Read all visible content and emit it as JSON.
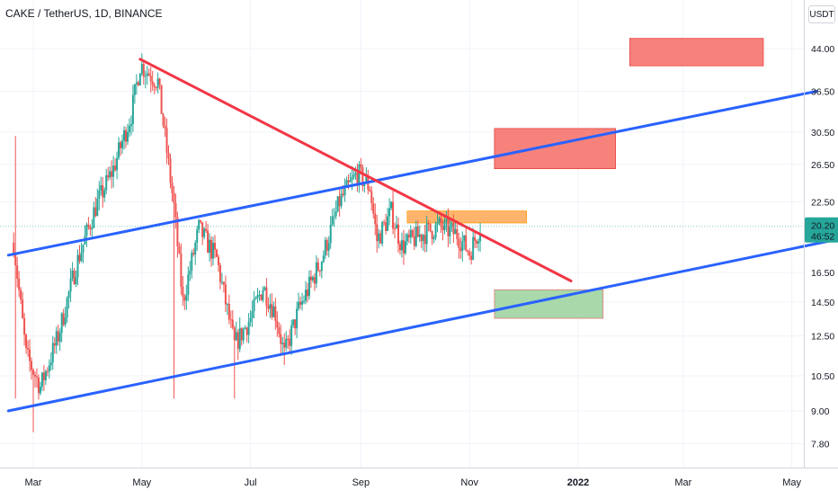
{
  "header": {
    "symbol": "CAKE / TetherUS, 1D, BINANCE",
    "currency_button": "USDT"
  },
  "colors": {
    "up": "#26a69a",
    "down": "#ef5350",
    "channel_line": "#2962ff",
    "trend_line": "#f23645",
    "last_price_tag": "#26a69a",
    "zone_red": "#f77c75",
    "zone_orange": "#ffb066",
    "zone_green": "#a5d6a7"
  },
  "chart_data": {
    "type": "candlestick",
    "scale": "log",
    "y_ticks": [
      "44.00",
      "36.50",
      "30.50",
      "26.50",
      "22.50",
      "16.50",
      "14.50",
      "12.50",
      "10.50",
      "9.00",
      "7.80"
    ],
    "x_ticks": [
      "Mar",
      "May",
      "Jul",
      "Sep",
      "Nov",
      "2022",
      "Mar",
      "May"
    ],
    "last_price": "20.20",
    "countdown": "46:52",
    "waypoints": [
      {
        "date": "2021-02-18",
        "price": 18.8
      },
      {
        "date": "2021-02-25",
        "price": 11.5
      },
      {
        "date": "2021-03-05",
        "price": 10.0
      },
      {
        "date": "2021-03-15",
        "price": 12.5
      },
      {
        "date": "2021-03-25",
        "price": 17.0
      },
      {
        "date": "2021-04-05",
        "price": 22.0
      },
      {
        "date": "2021-04-15",
        "price": 26.0
      },
      {
        "date": "2021-04-25",
        "price": 33.0
      },
      {
        "date": "2021-04-30",
        "price": 41.0
      },
      {
        "date": "2021-05-10",
        "price": 38.0
      },
      {
        "date": "2021-05-19",
        "price": 22.0
      },
      {
        "date": "2021-05-24",
        "price": 14.5
      },
      {
        "date": "2021-06-02",
        "price": 20.0
      },
      {
        "date": "2021-06-12",
        "price": 17.5
      },
      {
        "date": "2021-06-22",
        "price": 12.0
      },
      {
        "date": "2021-07-01",
        "price": 13.5
      },
      {
        "date": "2021-07-08",
        "price": 15.5
      },
      {
        "date": "2021-07-15",
        "price": 13.8
      },
      {
        "date": "2021-07-20",
        "price": 11.5
      },
      {
        "date": "2021-07-28",
        "price": 14.0
      },
      {
        "date": "2021-08-10",
        "price": 17.5
      },
      {
        "date": "2021-08-20",
        "price": 22.5
      },
      {
        "date": "2021-08-30",
        "price": 25.5
      },
      {
        "date": "2021-09-06",
        "price": 24.0
      },
      {
        "date": "2021-09-10",
        "price": 19.0
      },
      {
        "date": "2021-09-18",
        "price": 21.5
      },
      {
        "date": "2021-09-24",
        "price": 18.5
      },
      {
        "date": "2021-10-05",
        "price": 19.5
      },
      {
        "date": "2021-10-15",
        "price": 20.2
      },
      {
        "date": "2021-10-25",
        "price": 19.5
      },
      {
        "date": "2021-11-01",
        "price": 18.0
      },
      {
        "date": "2021-11-07",
        "price": 20.2
      }
    ],
    "spikes": [
      {
        "date": "2021-02-19",
        "high": 30.0,
        "low": 9.5
      },
      {
        "date": "2021-03-01",
        "low": 8.2
      },
      {
        "date": "2021-05-19",
        "low": 9.5
      },
      {
        "date": "2021-06-22",
        "low": 9.5
      },
      {
        "date": "2021-07-20",
        "low": 11.0
      }
    ],
    "channel_upper": [
      {
        "date": "2021-02-15",
        "price": 17.8
      },
      {
        "date": "2022-05-15",
        "price": 36.5
      }
    ],
    "channel_lower": [
      {
        "date": "2021-02-15",
        "price": 9.0
      },
      {
        "date": "2022-05-24",
        "price": 19.0
      }
    ],
    "trend_line": [
      {
        "date": "2021-04-30",
        "price": 42.0
      },
      {
        "date": "2021-12-28",
        "price": 15.9
      }
    ],
    "zones": [
      {
        "color": "red",
        "from": "2022-01-30",
        "to": "2022-04-15",
        "high": 46.0,
        "low": 40.8
      },
      {
        "color": "red",
        "from": "2021-11-15",
        "to": "2022-01-22",
        "high": 31.0,
        "low": 26.0
      },
      {
        "color": "orange",
        "from": "2021-09-27",
        "to": "2021-12-03",
        "high": 21.6,
        "low": 20.5
      },
      {
        "color": "green",
        "from": "2021-11-15",
        "to": "2022-01-15",
        "high": 15.3,
        "low": 13.5
      }
    ]
  }
}
